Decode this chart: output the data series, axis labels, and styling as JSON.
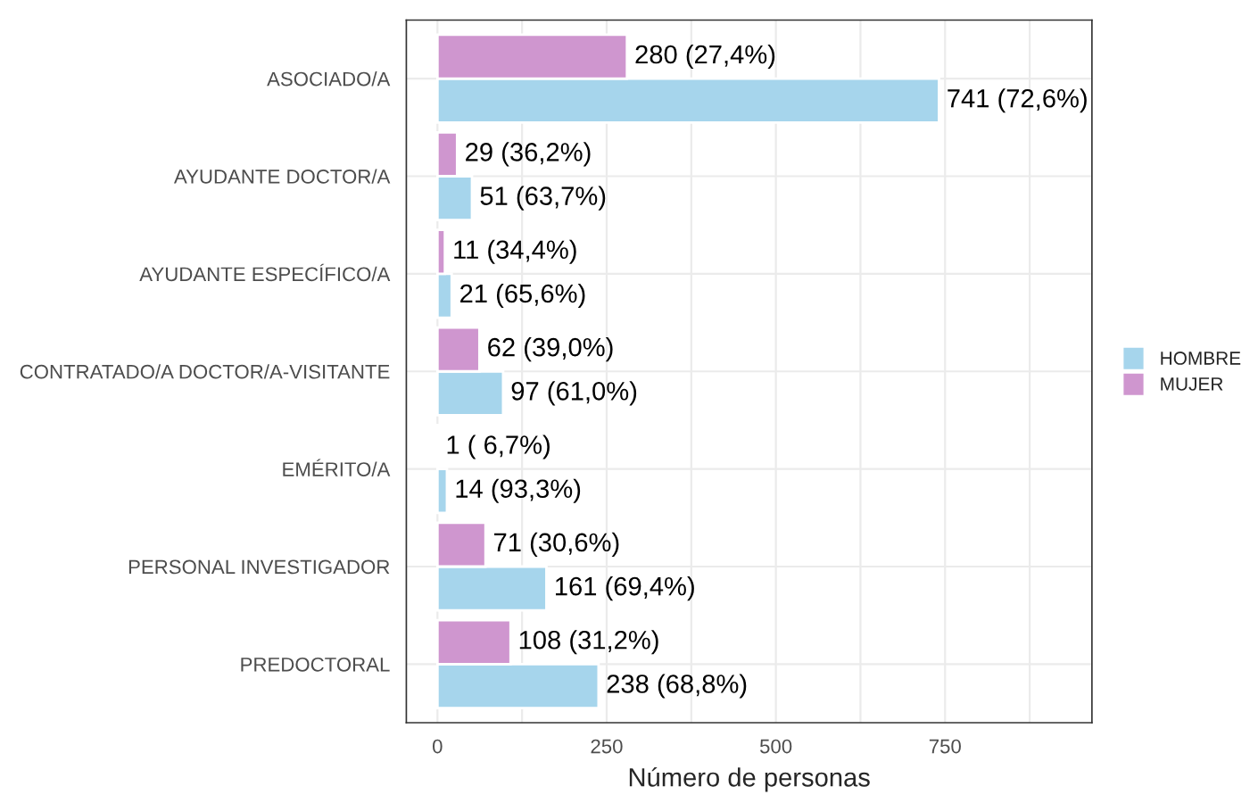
{
  "chart_data": {
    "type": "bar",
    "orientation": "horizontal",
    "xlabel": "Número de personas",
    "categories": [
      "ASOCIADO/A",
      "AYUDANTE DOCTOR/A",
      "AYUDANTE ESPECÍFICO/A",
      "CONTRATADO/A DOCTOR/A-VISITANTE",
      "EMÉRITO/A",
      "PERSONAL INVESTIGADOR",
      "PREDOCTORAL"
    ],
    "series": [
      {
        "name": "HOMBRE",
        "color": "#a6d5ec",
        "values": [
          741,
          51,
          21,
          97,
          14,
          161,
          238
        ],
        "value_labels": [
          "741 (72,6%)",
          "51 (63,7%)",
          "21 (65,6%)",
          "97 (61,0%)",
          "14 (93,3%)",
          "161 (69,4%)",
          "238 (68,8%)"
        ]
      },
      {
        "name": "MUJER",
        "color": "#cf96cf",
        "values": [
          280,
          29,
          11,
          62,
          1,
          71,
          108
        ],
        "value_labels": [
          "280 (27,4%)",
          "29 (36,2%)",
          "11 (34,4%)",
          "62 (39,0%)",
          "1 ( 6,7%)",
          "71 (30,6%)",
          "108 (31,2%)"
        ]
      }
    ],
    "xlim": [
      -46,
      967
    ],
    "xticks": [
      0,
      {
        "value": 125,
        "label": null
      },
      250,
      {
        "value": 375,
        "label": null
      },
      500,
      {
        "value": 625,
        "label": null
      },
      750,
      {
        "value": 875,
        "label": null
      }
    ],
    "grid": true,
    "legend": "right"
  }
}
